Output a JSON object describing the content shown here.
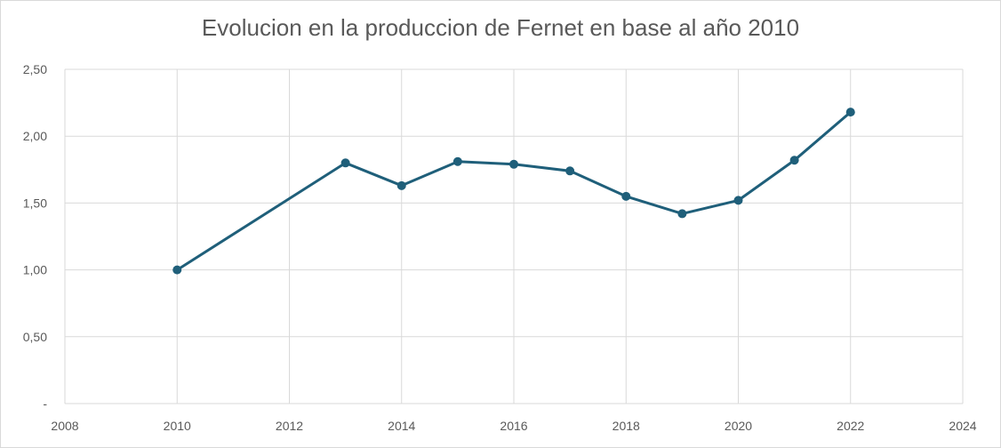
{
  "chart_data": {
    "type": "scatter",
    "title": "Evolucion en la produccion de Fernet en base al año 2010",
    "xlabel": "",
    "ylabel": "",
    "xlim": [
      2008,
      2024
    ],
    "ylim": [
      0,
      2.5
    ],
    "x_ticks": [
      "2008",
      "2010",
      "2012",
      "2014",
      "2016",
      "2018",
      "2020",
      "2022",
      "2024"
    ],
    "y_ticks": [
      "-",
      "0,50",
      "1,00",
      "1,50",
      "2,00",
      "2,50"
    ],
    "grid": true,
    "legend": "none",
    "series": [
      {
        "color": "#1f5f7a",
        "x": [
          2010,
          2013,
          2014,
          2015,
          2016,
          2017,
          2018,
          2019,
          2020,
          2021,
          2022
        ],
        "y": [
          1.0,
          1.8,
          1.63,
          1.81,
          1.79,
          1.74,
          1.55,
          1.42,
          1.52,
          1.82,
          2.18
        ]
      }
    ]
  }
}
